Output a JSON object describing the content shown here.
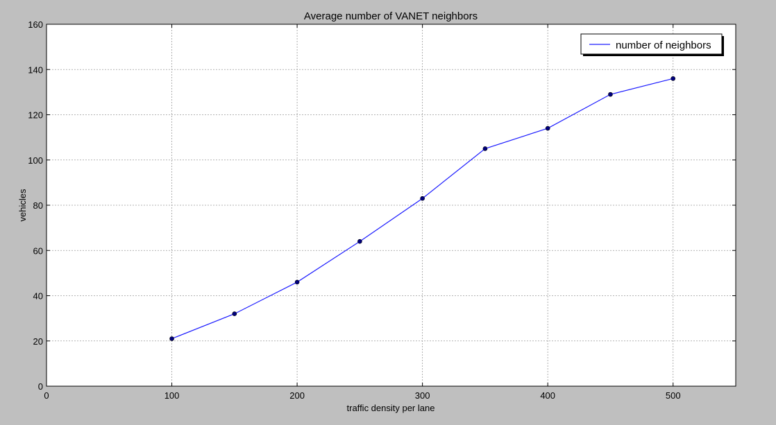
{
  "chart_data": {
    "type": "line",
    "title": "Average number of VANET neighbors",
    "xlabel": "traffic density per lane",
    "ylabel": "vehicles",
    "xlim": [
      0,
      550
    ],
    "ylim": [
      0,
      160
    ],
    "xticks": [
      0,
      100,
      200,
      300,
      400,
      500
    ],
    "yticks": [
      0,
      20,
      40,
      60,
      80,
      100,
      120,
      140,
      160
    ],
    "grid": true,
    "legend_position": "top-right",
    "series": [
      {
        "name": "number of neighbors",
        "color": "#1a1aff",
        "marker_color": "#00007f",
        "x": [
          100,
          150,
          200,
          250,
          300,
          350,
          400,
          450,
          500
        ],
        "y": [
          21,
          32,
          46,
          64,
          83,
          105,
          114,
          129,
          136
        ]
      }
    ]
  }
}
